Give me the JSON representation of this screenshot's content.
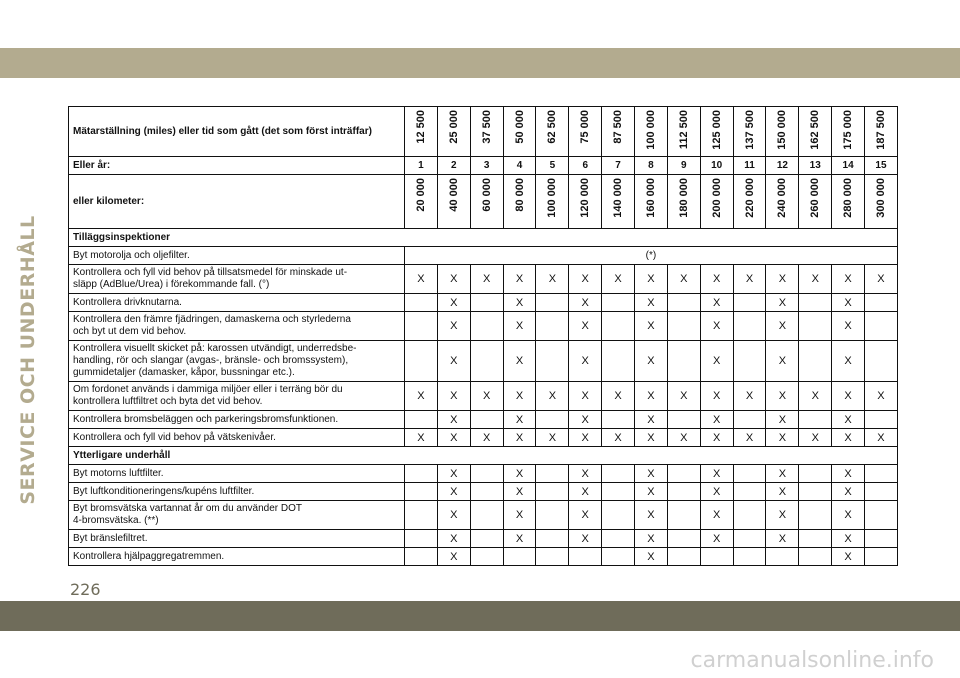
{
  "page": {
    "side_label": "SERVICE OCH UNDERHÅLL",
    "page_number": "226",
    "watermark": "carmanualsonline.info"
  },
  "table": {
    "miles_label": "Mätarställning (miles) eller tid som gått (det som först inträffar)",
    "miles": [
      "12 500",
      "25 000",
      "37 500",
      "50 000",
      "62 500",
      "75 000",
      "87 500",
      "100 000",
      "112 500",
      "125 000",
      "137 500",
      "150 000",
      "162 500",
      "175 000",
      "187 500"
    ],
    "years_label": "Eller år:",
    "years": [
      "1",
      "2",
      "3",
      "4",
      "5",
      "6",
      "7",
      "8",
      "9",
      "10",
      "11",
      "12",
      "13",
      "14",
      "15"
    ],
    "km_label": "eller kilometer:",
    "km": [
      "20 000",
      "40 000",
      "60 000",
      "80 000",
      "100 000",
      "120 000",
      "140 000",
      "160 000",
      "180 000",
      "200 000",
      "220 000",
      "240 000",
      "260 000",
      "280 000",
      "300 000"
    ],
    "section1": "Tilläggsinspektioner",
    "section2": "Ytterligare underhåll",
    "rows1": [
      {
        "label": "Byt motorolja och oljefilter.",
        "note": "(*)"
      },
      {
        "label": "Kontrollera och fyll vid behov på tillsatsmedel för minskade ut-\nsläpp (AdBlue/Urea) i förekommande fall. (°)",
        "marks": [
          "X",
          "X",
          "X",
          "X",
          "X",
          "X",
          "X",
          "X",
          "X",
          "X",
          "X",
          "X",
          "X",
          "X",
          "X"
        ]
      },
      {
        "label": "Kontrollera drivknutarna.",
        "marks": [
          "",
          "X",
          "",
          "X",
          "",
          "X",
          "",
          "X",
          "",
          "X",
          "",
          "X",
          "",
          "X",
          ""
        ]
      },
      {
        "label": "Kontrollera den främre fjädringen, damaskerna och styrlederna\noch byt ut dem vid behov.",
        "marks": [
          "",
          "X",
          "",
          "X",
          "",
          "X",
          "",
          "X",
          "",
          "X",
          "",
          "X",
          "",
          "X",
          ""
        ]
      },
      {
        "label": "Kontrollera visuellt skicket på: karossen utvändigt, underredsbe-\nhandling, rör och slangar (avgas-, bränsle- och bromssystem),\ngummidetaljer (damasker, kåpor, bussningar etc.).",
        "marks": [
          "",
          "X",
          "",
          "X",
          "",
          "X",
          "",
          "X",
          "",
          "X",
          "",
          "X",
          "",
          "X",
          ""
        ]
      },
      {
        "label": "Om fordonet används i dammiga miljöer eller i terräng bör du\nkontrollera luftfiltret och byta det vid behov.",
        "marks": [
          "X",
          "X",
          "X",
          "X",
          "X",
          "X",
          "X",
          "X",
          "X",
          "X",
          "X",
          "X",
          "X",
          "X",
          "X"
        ]
      },
      {
        "label": "Kontrollera bromsbeläggen och parkeringsbromsfunktionen.",
        "marks": [
          "",
          "X",
          "",
          "X",
          "",
          "X",
          "",
          "X",
          "",
          "X",
          "",
          "X",
          "",
          "X",
          ""
        ]
      },
      {
        "label": "Kontrollera och fyll vid behov på vätskenivåer.",
        "marks": [
          "X",
          "X",
          "X",
          "X",
          "X",
          "X",
          "X",
          "X",
          "X",
          "X",
          "X",
          "X",
          "X",
          "X",
          "X"
        ]
      }
    ],
    "rows2": [
      {
        "label": "Byt motorns luftfilter.",
        "marks": [
          "",
          "X",
          "",
          "X",
          "",
          "X",
          "",
          "X",
          "",
          "X",
          "",
          "X",
          "",
          "X",
          ""
        ]
      },
      {
        "label": "Byt luftkonditioneringens/kupéns luftfilter.",
        "marks": [
          "",
          "X",
          "",
          "X",
          "",
          "X",
          "",
          "X",
          "",
          "X",
          "",
          "X",
          "",
          "X",
          ""
        ]
      },
      {
        "label": "Byt bromsvätska vartannat år om du använder DOT\n4-bromsvätska. (**)",
        "marks": [
          "",
          "X",
          "",
          "X",
          "",
          "X",
          "",
          "X",
          "",
          "X",
          "",
          "X",
          "",
          "X",
          ""
        ]
      },
      {
        "label": "Byt bränslefiltret.",
        "marks": [
          "",
          "X",
          "",
          "X",
          "",
          "X",
          "",
          "X",
          "",
          "X",
          "",
          "X",
          "",
          "X",
          ""
        ]
      },
      {
        "label": "Kontrollera hjälpaggregatremmen.",
        "marks": [
          "",
          "X",
          "",
          "",
          "",
          "",
          "",
          "X",
          "",
          "",
          "",
          "",
          "",
          "X",
          ""
        ]
      }
    ]
  }
}
